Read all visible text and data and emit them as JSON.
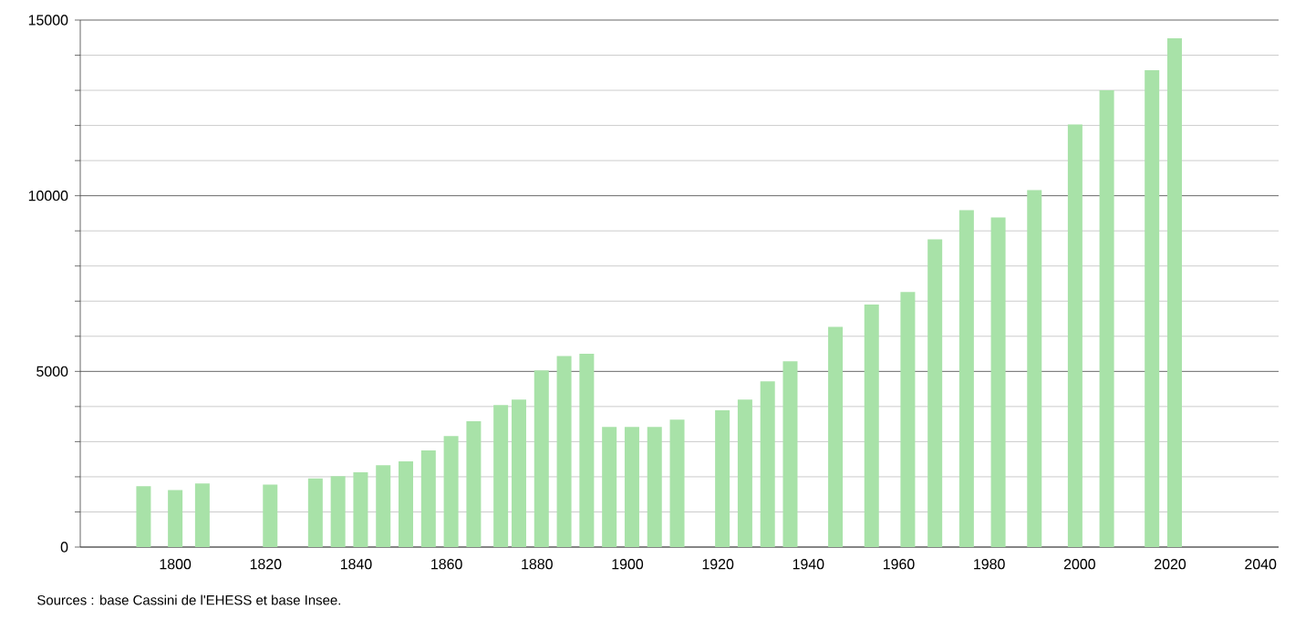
{
  "chart_data": {
    "type": "bar",
    "x": [
      1793,
      1800,
      1806,
      1821,
      1831,
      1836,
      1841,
      1846,
      1851,
      1856,
      1861,
      1866,
      1872,
      1876,
      1881,
      1886,
      1891,
      1896,
      1901,
      1906,
      1911,
      1921,
      1926,
      1931,
      1936,
      1946,
      1954,
      1962,
      1968,
      1975,
      1982,
      1990,
      1999,
      2006,
      2016,
      2021
    ],
    "values": [
      1730,
      1620,
      1810,
      1780,
      1950,
      2020,
      2130,
      2330,
      2440,
      2750,
      3160,
      3580,
      4040,
      4200,
      5030,
      5440,
      5500,
      3420,
      3420,
      3420,
      3630,
      3890,
      4200,
      4720,
      5290,
      6270,
      6900,
      7260,
      8760,
      9590,
      9380,
      10160,
      12030,
      13000,
      13570,
      14480
    ],
    "color": "#a8e2a8",
    "xlim": [
      1779,
      2044
    ],
    "ylim": [
      0,
      15000
    ],
    "xticks": [
      1800,
      1820,
      1840,
      1860,
      1880,
      1900,
      1920,
      1940,
      1960,
      1980,
      2000,
      2020,
      2040
    ],
    "yticks": [
      0,
      {
        "value": 1000,
        "label": null
      },
      {
        "value": 2000,
        "label": null
      },
      {
        "value": 3000,
        "label": null
      },
      {
        "value": 4000,
        "label": null
      },
      5000,
      {
        "value": 6000,
        "label": null
      },
      {
        "value": 7000,
        "label": null
      },
      {
        "value": 8000,
        "label": null
      },
      {
        "value": 9000,
        "label": null
      },
      10000,
      {
        "value": 11000,
        "label": null
      },
      {
        "value": 12000,
        "label": null
      },
      {
        "value": 13000,
        "label": null
      },
      {
        "value": 14000,
        "label": null
      },
      15000
    ],
    "grid": "y",
    "annotations": [
      "Sources : base Cassini de l'EHESS et base Insee."
    ]
  }
}
